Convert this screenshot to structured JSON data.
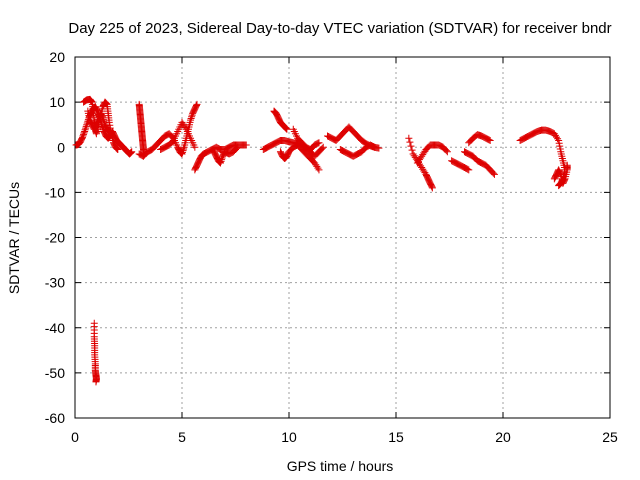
{
  "chart_data": {
    "type": "scatter",
    "title": "Day 225 of 2023, Sidereal Day-to-day VTEC variation (SDTVAR) for receiver bndr",
    "xlabel": "GPS time / hours",
    "ylabel": "SDTVAR / TECUs",
    "xlim": [
      0,
      25
    ],
    "ylim": [
      -60,
      20
    ],
    "grid": true,
    "marker": "+",
    "color": "#dd0000",
    "xticks": [
      0,
      5,
      10,
      15,
      20,
      25
    ],
    "xtick_labels": [
      "0",
      "5",
      "10",
      "15",
      "20",
      "25"
    ],
    "yticks": [
      -60,
      -50,
      -40,
      -30,
      -20,
      -10,
      0,
      10,
      20
    ],
    "ytick_labels": [
      "-60",
      "-50",
      "-40",
      "-30",
      "-20",
      "-10",
      "0",
      "10",
      "20"
    ],
    "segments": [
      {
        "name": "arc-a",
        "points": [
          [
            0.05,
            0.5
          ],
          [
            0.15,
            0.6
          ],
          [
            0.25,
            1.2
          ],
          [
            0.35,
            2.2
          ],
          [
            0.45,
            3.5
          ],
          [
            0.55,
            5
          ],
          [
            0.65,
            6.5
          ],
          [
            0.75,
            7.5
          ],
          [
            0.85,
            8.5
          ],
          [
            0.95,
            9
          ],
          [
            1.05,
            8
          ],
          [
            1.15,
            6.5
          ],
          [
            1.25,
            5
          ],
          [
            1.35,
            3.5
          ],
          [
            1.45,
            2.5
          ],
          [
            1.55,
            2
          ],
          [
            1.65,
            2.5
          ],
          [
            1.75,
            3.5
          ],
          [
            1.85,
            2.5
          ],
          [
            1.95,
            1.5
          ],
          [
            2.05,
            1
          ],
          [
            2.15,
            0.5
          ],
          [
            2.25,
            0
          ],
          [
            2.35,
            -0.5
          ],
          [
            2.45,
            -1
          ],
          [
            2.55,
            -1.5
          ],
          [
            2.65,
            -1
          ]
        ]
      },
      {
        "name": "arc-b",
        "points": [
          [
            0.4,
            10
          ],
          [
            0.55,
            10.5
          ],
          [
            0.7,
            10.6
          ],
          [
            0.8,
            10
          ],
          [
            0.85,
            8
          ],
          [
            0.9,
            6
          ],
          [
            0.95,
            4
          ],
          [
            1.0,
            3
          ],
          [
            1.1,
            5
          ],
          [
            1.2,
            7
          ],
          [
            1.3,
            9
          ],
          [
            1.4,
            10
          ],
          [
            1.5,
            9.5
          ],
          [
            1.55,
            7.5
          ],
          [
            1.6,
            5.5
          ],
          [
            1.7,
            3
          ],
          [
            1.8,
            1
          ],
          [
            1.9,
            0
          ],
          [
            2.0,
            -0.5
          ]
        ]
      },
      {
        "name": "arc-c",
        "points": [
          [
            0.6,
            8
          ],
          [
            0.7,
            6
          ],
          [
            0.8,
            5
          ],
          [
            0.9,
            4
          ],
          [
            1.0,
            5
          ],
          [
            1.1,
            6.5
          ],
          [
            1.2,
            7.5
          ],
          [
            1.3,
            6.5
          ],
          [
            1.4,
            5
          ],
          [
            1.5,
            4
          ],
          [
            1.6,
            3.5
          ]
        ]
      },
      {
        "name": "outlier-column",
        "points": [
          [
            0.9,
            -39
          ],
          [
            0.9,
            -42
          ],
          [
            0.92,
            -44
          ],
          [
            0.92,
            -46
          ],
          [
            0.95,
            -48
          ],
          [
            0.95,
            -49.5
          ],
          [
            0.98,
            -50.5
          ],
          [
            1.0,
            -51.3
          ],
          [
            0.98,
            -52
          ]
        ]
      },
      {
        "name": "spike-3h",
        "points": [
          [
            3.0,
            9.5
          ],
          [
            3.02,
            8.5
          ],
          [
            3.04,
            7.5
          ],
          [
            3.06,
            6.5
          ],
          [
            3.08,
            5.5
          ],
          [
            3.1,
            4.5
          ],
          [
            3.12,
            3.5
          ],
          [
            3.14,
            2.5
          ],
          [
            3.16,
            1.5
          ],
          [
            3.18,
            0.5
          ],
          [
            3.2,
            -0.5
          ],
          [
            3.22,
            -1.5
          ]
        ]
      },
      {
        "name": "arc-d",
        "points": [
          [
            3.0,
            -1.5
          ],
          [
            3.2,
            -2
          ],
          [
            3.4,
            -1
          ],
          [
            3.6,
            -0.5
          ],
          [
            3.8,
            0.5
          ],
          [
            4.0,
            1.5
          ],
          [
            4.2,
            2.5
          ],
          [
            4.4,
            3
          ],
          [
            4.6,
            2
          ],
          [
            4.8,
            0
          ],
          [
            4.9,
            -1
          ],
          [
            5.0,
            -1.5
          ],
          [
            5.1,
            0
          ],
          [
            5.2,
            2
          ],
          [
            5.3,
            4
          ],
          [
            5.4,
            6
          ],
          [
            5.5,
            7.5
          ],
          [
            5.6,
            8.5
          ],
          [
            5.7,
            9.5
          ]
        ]
      },
      {
        "name": "arc-e",
        "points": [
          [
            4.0,
            -0.5
          ],
          [
            4.2,
            0
          ],
          [
            4.4,
            0.5
          ],
          [
            4.6,
            1.5
          ],
          [
            4.8,
            3.5
          ],
          [
            5.0,
            5.5
          ],
          [
            5.2,
            4
          ],
          [
            5.4,
            2
          ],
          [
            5.6,
            0
          ]
        ]
      },
      {
        "name": "arc-f",
        "points": [
          [
            5.6,
            -5
          ],
          [
            5.7,
            -4
          ],
          [
            5.8,
            -3
          ],
          [
            5.9,
            -2
          ],
          [
            6.0,
            -1.5
          ],
          [
            6.2,
            -1
          ],
          [
            6.4,
            -0.5
          ],
          [
            6.6,
            0
          ],
          [
            6.8,
            -0.5
          ],
          [
            7.0,
            -0.5
          ],
          [
            7.2,
            0
          ],
          [
            7.4,
            0.5
          ],
          [
            7.6,
            0.5
          ],
          [
            7.8,
            0.5
          ],
          [
            8.0,
            0.5
          ]
        ]
      },
      {
        "name": "arc-g",
        "points": [
          [
            6.5,
            -1
          ],
          [
            6.6,
            -2
          ],
          [
            6.7,
            -3
          ],
          [
            6.8,
            -3.5
          ],
          [
            6.9,
            -2
          ],
          [
            7.0,
            -1
          ],
          [
            7.2,
            -1.5
          ],
          [
            7.4,
            -1
          ],
          [
            7.6,
            0
          ]
        ]
      },
      {
        "name": "arc-h",
        "points": [
          [
            8.8,
            -0.5
          ],
          [
            9.0,
            0
          ],
          [
            9.2,
            0.5
          ],
          [
            9.4,
            1
          ],
          [
            9.6,
            1.5
          ],
          [
            9.8,
            1.5
          ],
          [
            10.0,
            1.2
          ],
          [
            10.2,
            1
          ],
          [
            10.4,
            0.8
          ],
          [
            10.6,
            0.5
          ],
          [
            10.8,
            0
          ],
          [
            11.0,
            -0.5
          ],
          [
            11.2,
            0.5
          ],
          [
            11.4,
            1
          ]
        ]
      },
      {
        "name": "arc-i",
        "points": [
          [
            9.3,
            8
          ],
          [
            9.4,
            7.5
          ],
          [
            9.5,
            6.5
          ],
          [
            9.6,
            5.5
          ],
          [
            9.7,
            5
          ],
          [
            9.8,
            4.5
          ],
          [
            9.9,
            4
          ]
        ]
      },
      {
        "name": "arc-j",
        "points": [
          [
            9.6,
            -1
          ],
          [
            9.7,
            -2
          ],
          [
            9.8,
            -2.5
          ],
          [
            9.9,
            -2
          ],
          [
            10.0,
            -1
          ],
          [
            10.2,
            0
          ],
          [
            10.4,
            0.5
          ],
          [
            10.6,
            -0.5
          ],
          [
            10.8,
            -1.5
          ],
          [
            11.0,
            -2.5
          ],
          [
            11.2,
            -3.5
          ],
          [
            11.4,
            -5
          ]
        ]
      },
      {
        "name": "arc-k",
        "points": [
          [
            10.2,
            4
          ],
          [
            10.4,
            2
          ],
          [
            10.6,
            1
          ],
          [
            10.8,
            0
          ],
          [
            11.0,
            -1
          ],
          [
            11.2,
            -2
          ],
          [
            11.4,
            -1
          ],
          [
            11.6,
            0
          ]
        ]
      },
      {
        "name": "arc-l",
        "points": [
          [
            11.8,
            2.5
          ],
          [
            12.0,
            2
          ],
          [
            12.2,
            1.5
          ],
          [
            12.4,
            2.5
          ],
          [
            12.6,
            3.5
          ],
          [
            12.8,
            4.5
          ],
          [
            13.0,
            3.5
          ],
          [
            13.2,
            2.5
          ],
          [
            13.4,
            1.5
          ],
          [
            13.6,
            0.8
          ],
          [
            13.8,
            0.3
          ],
          [
            14.0,
            0
          ],
          [
            14.2,
            -0.2
          ]
        ]
      },
      {
        "name": "arc-m",
        "points": [
          [
            12.4,
            -0.5
          ],
          [
            12.6,
            -1
          ],
          [
            12.8,
            -1.5
          ],
          [
            13.0,
            -2
          ],
          [
            13.2,
            -1.5
          ],
          [
            13.4,
            -1
          ],
          [
            13.6,
            0
          ],
          [
            13.8,
            0.5
          ],
          [
            14.0,
            0
          ]
        ]
      },
      {
        "name": "arc-n",
        "points": [
          [
            15.6,
            2
          ],
          [
            15.8,
            -1.5
          ],
          [
            16.0,
            -3
          ],
          [
            16.2,
            -4.5
          ],
          [
            16.4,
            -6
          ],
          [
            16.5,
            -7
          ],
          [
            16.6,
            -8
          ],
          [
            16.7,
            -9
          ]
        ]
      },
      {
        "name": "arc-o",
        "points": [
          [
            16.0,
            -3.5
          ],
          [
            16.2,
            -2
          ],
          [
            16.4,
            -0.5
          ],
          [
            16.6,
            0.5
          ],
          [
            16.8,
            0.5
          ],
          [
            17.0,
            0.5
          ],
          [
            17.2,
            0
          ],
          [
            17.4,
            -1
          ]
        ]
      },
      {
        "name": "arc-p",
        "points": [
          [
            17.6,
            -3
          ],
          [
            17.8,
            -3.5
          ],
          [
            18.0,
            -4
          ],
          [
            18.2,
            -4.5
          ],
          [
            18.4,
            -5
          ]
        ]
      },
      {
        "name": "arc-q",
        "points": [
          [
            18.2,
            -1
          ],
          [
            18.4,
            -1.5
          ],
          [
            18.6,
            -2
          ],
          [
            18.8,
            -3
          ],
          [
            19.0,
            -3.5
          ],
          [
            19.2,
            -4
          ],
          [
            19.4,
            -5
          ],
          [
            19.6,
            -6
          ]
        ]
      },
      {
        "name": "arc-r",
        "points": [
          [
            18.4,
            1
          ],
          [
            18.6,
            2
          ],
          [
            18.8,
            2.8
          ],
          [
            19.0,
            2.5
          ],
          [
            19.2,
            2
          ],
          [
            19.4,
            1.5
          ]
        ]
      },
      {
        "name": "arc-s",
        "points": [
          [
            20.8,
            1.5
          ],
          [
            21.0,
            2
          ],
          [
            21.2,
            2.5
          ],
          [
            21.4,
            3
          ],
          [
            21.6,
            3.5
          ],
          [
            21.8,
            3.8
          ],
          [
            22.0,
            3.8
          ],
          [
            22.2,
            3.5
          ],
          [
            22.4,
            3
          ],
          [
            22.6,
            1.5
          ],
          [
            22.7,
            -1
          ],
          [
            22.8,
            -3
          ],
          [
            22.9,
            -5
          ],
          [
            22.8,
            -7
          ],
          [
            22.7,
            -8
          ],
          [
            22.6,
            -8.5
          ]
        ]
      },
      {
        "name": "arc-t",
        "points": [
          [
            22.4,
            -7
          ],
          [
            22.5,
            -6
          ],
          [
            22.6,
            -5
          ],
          [
            22.7,
            -6
          ],
          [
            22.8,
            -8
          ],
          [
            22.9,
            -7
          ],
          [
            23.0,
            -5
          ],
          [
            23.0,
            -4
          ]
        ]
      }
    ]
  }
}
